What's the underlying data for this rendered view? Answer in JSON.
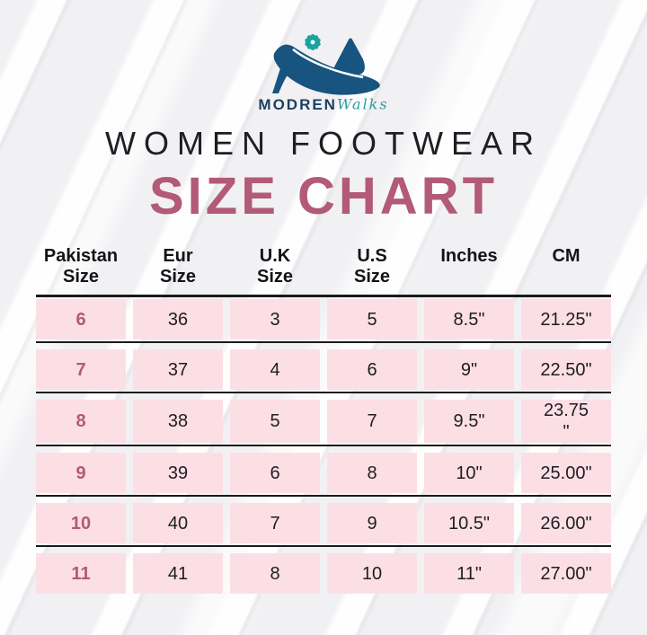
{
  "brand": {
    "name": "MODREN",
    "suffix": "Walks",
    "logo_icon": "high-heels-with-flower-icon"
  },
  "header": {
    "title": "WOMEN FOOTWEAR",
    "subtitle": "SIZE CHART"
  },
  "colors": {
    "accent_mauve": "#b25a76",
    "row_pink": "#fcdfe5",
    "brand_navy": "#1c3f5e",
    "shoe_blue": "#17547f",
    "flower_teal": "#1ba3a0",
    "text_dark": "#1d1d24",
    "line_black": "#1a1a1a",
    "background": "#f1f1f4"
  },
  "table": {
    "columns": [
      {
        "key": "pakistan",
        "label": "Pakistan\nSize"
      },
      {
        "key": "eur",
        "label": "Eur\nSize"
      },
      {
        "key": "uk",
        "label": "U.K\nSize"
      },
      {
        "key": "us",
        "label": "U.S\nSize"
      },
      {
        "key": "inches",
        "label": "Inches"
      },
      {
        "key": "cm",
        "label": "CM"
      }
    ],
    "rows": [
      {
        "pakistan": "6",
        "eur": "36",
        "uk": "3",
        "us": "5",
        "inches": "8.5\"",
        "cm": "21.25\""
      },
      {
        "pakistan": "7",
        "eur": "37",
        "uk": "4",
        "us": "6",
        "inches": "9\"",
        "cm": "22.50\""
      },
      {
        "pakistan": "8",
        "eur": "38",
        "uk": "5",
        "us": "7",
        "inches": "9.5\"",
        "cm": "23.75\n\""
      },
      {
        "pakistan": "9",
        "eur": "39",
        "uk": "6",
        "us": "8",
        "inches": "10\"",
        "cm": "25.00\""
      },
      {
        "pakistan": "10",
        "eur": "40",
        "uk": "7",
        "us": "9",
        "inches": "10.5\"",
        "cm": "26.00\""
      },
      {
        "pakistan": "11",
        "eur": "41",
        "uk": "8",
        "us": "10",
        "inches": "11\"",
        "cm": "27.00\""
      }
    ]
  },
  "chart_data": {
    "type": "table",
    "title": "WOMEN FOOTWEAR SIZE CHART",
    "columns": [
      "Pakistan Size",
      "Eur Size",
      "U.K Size",
      "U.S Size",
      "Inches",
      "CM"
    ],
    "rows": [
      [
        "6",
        "36",
        "3",
        "5",
        "8.5\"",
        "21.25\""
      ],
      [
        "7",
        "37",
        "4",
        "6",
        "9\"",
        "22.50\""
      ],
      [
        "8",
        "38",
        "5",
        "7",
        "9.5\"",
        "23.75\""
      ],
      [
        "9",
        "39",
        "6",
        "8",
        "10\"",
        "25.00\""
      ],
      [
        "10",
        "40",
        "7",
        "9",
        "10.5\"",
        "26.00\""
      ],
      [
        "11",
        "41",
        "8",
        "10",
        "11\"",
        "27.00\""
      ]
    ]
  }
}
